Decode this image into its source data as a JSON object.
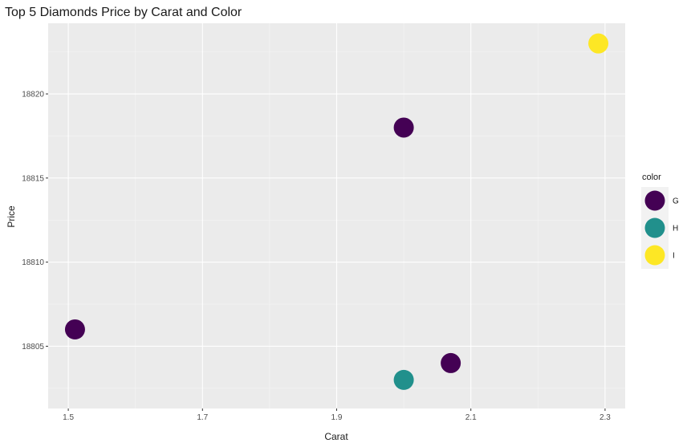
{
  "chart_data": {
    "type": "scatter",
    "title": "Top 5 Diamonds Price by Carat and Color",
    "xlabel": "Carat",
    "ylabel": "Price",
    "xlim": [
      1.47,
      2.33
    ],
    "ylim": [
      18801.3,
      18824.2
    ],
    "x_ticks": [
      1.5,
      1.7,
      1.9,
      2.1,
      2.3
    ],
    "x_tick_labels": [
      "1.5",
      "1.7",
      "1.9",
      "2.1",
      "2.3"
    ],
    "y_ticks": [
      18805,
      18810,
      18815,
      18820
    ],
    "y_tick_labels": [
      "18805",
      "18810",
      "18815",
      "18820"
    ],
    "grid": true,
    "legend": {
      "title": "color",
      "position": "right",
      "entries": [
        {
          "label": "G",
          "color": "#440154"
        },
        {
          "label": "H",
          "color": "#21908C"
        },
        {
          "label": "I",
          "color": "#FDE725"
        }
      ]
    },
    "points": [
      {
        "x": 2.29,
        "y": 18823,
        "color": "I"
      },
      {
        "x": 2.0,
        "y": 18818,
        "color": "G"
      },
      {
        "x": 1.51,
        "y": 18806,
        "color": "G"
      },
      {
        "x": 2.07,
        "y": 18804,
        "color": "G"
      },
      {
        "x": 2.0,
        "y": 18803,
        "color": "H"
      }
    ]
  }
}
